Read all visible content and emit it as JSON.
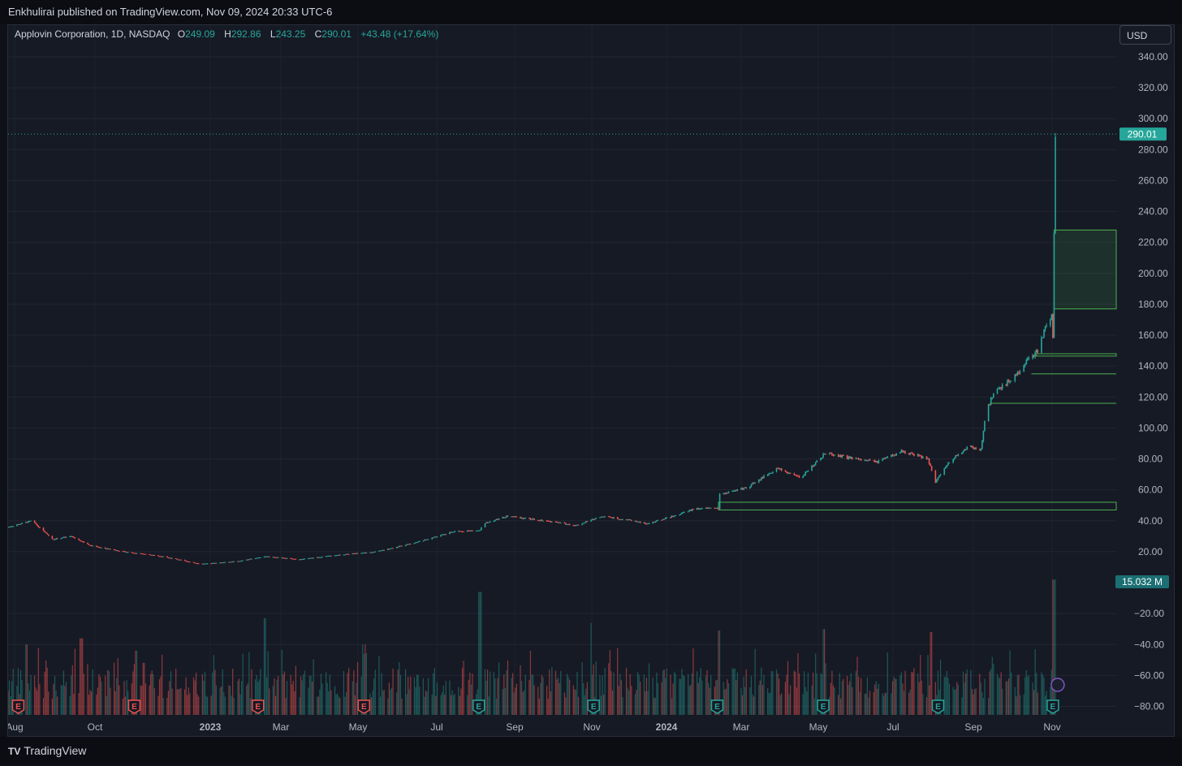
{
  "header": {
    "published": "Enkhulirai published on TradingView.com, Nov 09, 2024 20:33 UTC-6"
  },
  "legend": {
    "symbol": "Applovin Corporation, 1D, NASDAQ",
    "o_label": "O",
    "o_value": "249.09",
    "h_label": "H",
    "h_value": "292.86",
    "l_label": "L",
    "l_value": "243.25",
    "c_label": "C",
    "c_value": "290.01",
    "change": "+43.48 (+17.64%)"
  },
  "currency_button": "USD",
  "price_tag": "290.01",
  "volume_tag": "15.032 M",
  "earnings_marker": "E",
  "footer": {
    "brand": "TradingView",
    "logo": "TV"
  },
  "colors": {
    "up": "#26a69a",
    "down": "#ef5350",
    "zone": "#4caf50",
    "background": "#161a25"
  },
  "chart_data": {
    "type": "candlestick",
    "price_axis": {
      "ticks": [
        340,
        320,
        300,
        280,
        260,
        240,
        220,
        200,
        180,
        160,
        140,
        120,
        100,
        80,
        60,
        40,
        20
      ],
      "tick_labels": [
        "340.00",
        "320.00",
        "300.00",
        "280.00",
        "260.00",
        "240.00",
        "220.00",
        "200.00",
        "180.00",
        "160.00",
        "140.00",
        "120.00",
        "100.00",
        "80.00",
        "60.00",
        "40.00",
        "20.00"
      ]
    },
    "lower_axis": {
      "ticks": [
        -20,
        -40,
        -60,
        -80
      ],
      "tick_labels": [
        "−20.00",
        "−40.00",
        "−60.00",
        "−80.00"
      ]
    },
    "time_axis": {
      "labels": [
        "Aug",
        "Oct",
        "2023",
        "Mar",
        "May",
        "Jul",
        "Sep",
        "Nov",
        "2024",
        "Mar",
        "May",
        "Jul",
        "Sep",
        "Nov"
      ],
      "bold": [
        false,
        false,
        true,
        false,
        false,
        false,
        false,
        false,
        true,
        false,
        false,
        false,
        false,
        false
      ]
    },
    "price_path": [
      [
        "2022-08-01",
        36
      ],
      [
        "2022-08-20",
        40
      ],
      [
        "2022-09-05",
        28
      ],
      [
        "2022-09-20",
        30
      ],
      [
        "2022-10-05",
        24
      ],
      [
        "2022-11-01",
        20
      ],
      [
        "2022-12-01",
        17
      ],
      [
        "2023-01-01",
        12
      ],
      [
        "2023-02-01",
        14
      ],
      [
        "2023-02-20",
        17
      ],
      [
        "2023-03-20",
        15
      ],
      [
        "2023-04-20",
        18
      ],
      [
        "2023-05-20",
        20
      ],
      [
        "2023-06-20",
        26
      ],
      [
        "2023-07-20",
        33
      ],
      [
        "2023-08-10",
        34
      ],
      [
        "2023-08-12",
        38
      ],
      [
        "2023-09-01",
        43
      ],
      [
        "2023-10-01",
        40
      ],
      [
        "2023-10-25",
        37
      ],
      [
        "2023-11-15",
        43
      ],
      [
        "2023-12-10",
        40
      ],
      [
        "2023-12-20",
        38
      ],
      [
        "2024-01-10",
        43
      ],
      [
        "2024-01-28",
        48
      ],
      [
        "2024-02-15",
        48
      ],
      [
        "2024-02-16",
        57
      ],
      [
        "2024-03-10",
        62
      ],
      [
        "2024-04-01",
        74
      ],
      [
        "2024-04-20",
        68
      ],
      [
        "2024-05-10",
        84
      ],
      [
        "2024-06-01",
        80
      ],
      [
        "2024-06-20",
        78
      ],
      [
        "2024-07-10",
        85
      ],
      [
        "2024-07-30",
        80
      ],
      [
        "2024-08-05",
        65
      ],
      [
        "2024-08-15",
        78
      ],
      [
        "2024-09-01",
        88
      ],
      [
        "2024-09-10",
        86
      ],
      [
        "2024-09-14",
        110
      ],
      [
        "2024-09-20",
        122
      ],
      [
        "2024-10-05",
        132
      ],
      [
        "2024-10-18",
        145
      ],
      [
        "2024-10-25",
        150
      ],
      [
        "2024-10-31",
        165
      ],
      [
        "2024-11-05",
        172
      ],
      [
        "2024-11-06",
        160
      ],
      [
        "2024-11-07",
        225
      ],
      [
        "2024-11-08",
        290
      ]
    ],
    "volume_spikes": [
      [
        "2022-08-15",
        -40
      ],
      [
        "2022-09-28",
        -36
      ],
      [
        "2022-11-10",
        -44
      ],
      [
        "2023-02-20",
        -23
      ],
      [
        "2023-05-10",
        -40
      ],
      [
        "2023-08-10",
        -6
      ],
      [
        "2023-11-05",
        -26
      ],
      [
        "2024-02-16",
        -31
      ],
      [
        "2024-05-09",
        -30
      ],
      [
        "2024-08-02",
        -32
      ],
      [
        "2024-09-20",
        -36
      ],
      [
        "2024-11-07",
        2
      ]
    ],
    "earnings_dates": [
      "2022-08-09",
      "2022-11-09",
      "2023-02-15",
      "2023-05-10",
      "2023-08-09",
      "2023-11-08",
      "2024-02-14",
      "2024-05-08",
      "2024-08-07",
      "2024-11-06"
    ],
    "zones": [
      {
        "from": "2024-11-07",
        "low": 177,
        "high": 228,
        "fill": true
      },
      {
        "from": "2024-10-24",
        "low": 146.5,
        "high": 148,
        "fill": false
      },
      {
        "from": "2024-10-20",
        "low": 135,
        "high": 135,
        "fill": false
      },
      {
        "from": "2024-09-17",
        "low": 116,
        "high": 116,
        "fill": false
      },
      {
        "from": "2024-02-15",
        "low": 47,
        "high": 52,
        "fill": false
      }
    ],
    "last_price": 290.01,
    "last_volume": "15.032 M"
  }
}
